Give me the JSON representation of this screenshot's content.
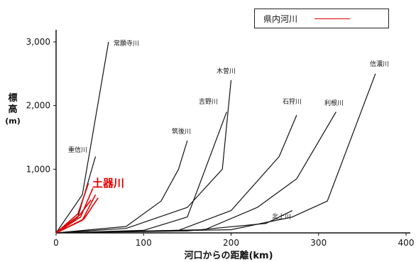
{
  "chart_data": {
    "type": "line",
    "xlabel": "河口からの距離(km)",
    "ylabel": "標高(m)",
    "xlim": [
      0,
      400
    ],
    "ylim": [
      0,
      3000
    ],
    "x_ticks": [
      "0",
      "100",
      "200",
      "300",
      "400"
    ],
    "y_ticks": [
      "1,000",
      "2,000",
      "3,000"
    ],
    "grid": false,
    "legend": {
      "position": "top-right",
      "entries": [
        {
          "label": "県内河川",
          "color": "#e00000"
        }
      ]
    },
    "highlight_label": "土器川",
    "series": [
      {
        "name": "常願寺川",
        "color": "#111111",
        "x": [
          0,
          30,
          60
        ],
        "y": [
          0,
          600,
          3000
        ]
      },
      {
        "name": "重信川",
        "color": "#111111",
        "x": [
          0,
          25,
          45
        ],
        "y": [
          0,
          250,
          1200
        ]
      },
      {
        "name": "筑後川",
        "color": "#111111",
        "x": [
          0,
          80,
          120,
          140,
          150
        ],
        "y": [
          0,
          100,
          500,
          1000,
          1450
        ]
      },
      {
        "name": "吉野川",
        "color": "#111111",
        "x": [
          0,
          100,
          150,
          195
        ],
        "y": [
          0,
          40,
          250,
          1900
        ]
      },
      {
        "name": "木曽川",
        "color": "#111111",
        "x": [
          0,
          80,
          150,
          190,
          200
        ],
        "y": [
          0,
          70,
          400,
          1000,
          2400
        ]
      },
      {
        "name": "石狩川",
        "color": "#111111",
        "x": [
          0,
          140,
          200,
          255,
          275
        ],
        "y": [
          0,
          40,
          350,
          1200,
          1850
        ]
      },
      {
        "name": "利根川",
        "color": "#111111",
        "x": [
          0,
          170,
          230,
          275,
          320
        ],
        "y": [
          0,
          50,
          400,
          850,
          1900
        ]
      },
      {
        "name": "信濃川",
        "color": "#111111",
        "x": [
          0,
          200,
          270,
          310,
          365
        ],
        "y": [
          0,
          50,
          250,
          500,
          2500
        ]
      },
      {
        "name": "北上川",
        "color": "#111111",
        "x": [
          0,
          150,
          240,
          270
        ],
        "y": [
          0,
          30,
          150,
          350
        ]
      },
      {
        "name": "",
        "color": "#e00000",
        "x": [
          0,
          25,
          37
        ],
        "y": [
          0,
          300,
          780
        ]
      },
      {
        "name": "",
        "color": "#e00000",
        "x": [
          0,
          28,
          42
        ],
        "y": [
          0,
          250,
          700
        ]
      },
      {
        "name": "",
        "color": "#e00000",
        "x": [
          0,
          30,
          45
        ],
        "y": [
          0,
          200,
          600
        ]
      },
      {
        "name": "",
        "color": "#e00000",
        "x": [
          0,
          27,
          40
        ],
        "y": [
          0,
          280,
          520
        ]
      },
      {
        "name": "",
        "color": "#e00000",
        "x": [
          0,
          32,
          48
        ],
        "y": [
          0,
          220,
          550
        ]
      }
    ]
  }
}
